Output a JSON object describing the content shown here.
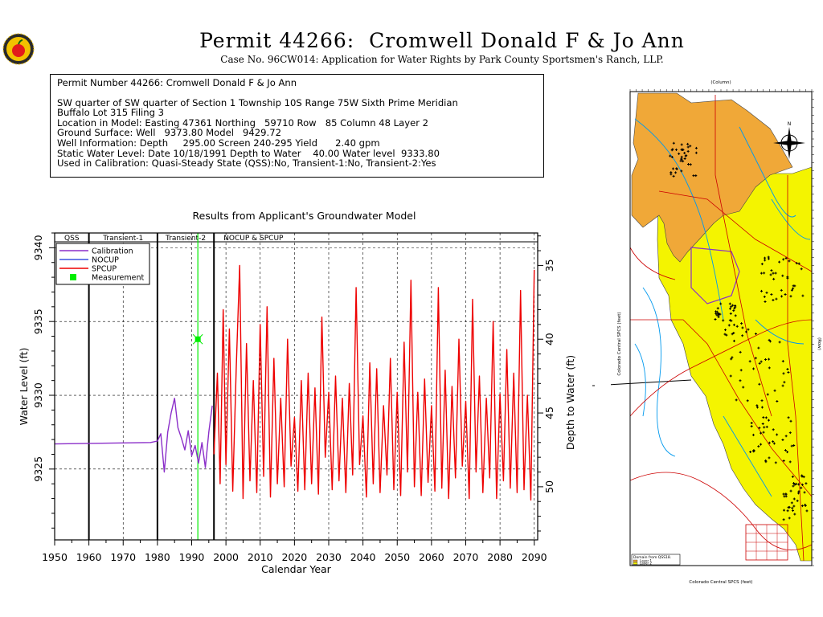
{
  "header": {
    "title": "Permit 44266:  Cromwell Donald F & Jo Ann",
    "subtitle": "Case No. 96CW014: Application for Water Rights by Park County Sportsmen's Ranch, LLP."
  },
  "info": {
    "line1": "Permit Number 44266: Cromwell Donald F & Jo Ann",
    "line2": "SW quarter of SW quarter of Section 1 Township 10S Range 75W Sixth Prime Meridian",
    "line3": "Buffalo Lot 315 Filing 3",
    "line4": "Location in Model: Easting 47361 Northing   59710 Row   85 Column 48 Layer 2",
    "line5": "Ground Surface: Well   9373.80 Model   9429.72",
    "line6": "Well Information: Depth     295.00 Screen 240-295 Yield      2.40 gpm",
    "line7": "Static Water Level: Date 10/18/1991 Depth to Water    40.00 Water level  9333.80",
    "line8": "Used in Calibration: Quasi-Steady State (QSS):No, Transient-1:No, Transient-2:Yes"
  },
  "colors": {
    "calibration": "#8b2fc9",
    "nocup": "#3b50e0",
    "spcup": "#ee0000",
    "measurement": "#00ee00",
    "map_orange": "#f0a838",
    "map_yellow": "#f4f400",
    "map_stream": "#0099ee",
    "map_road": "#cc0000"
  },
  "chart_data": {
    "type": "line",
    "title": "Results from Applicant's Groundwater Model",
    "xlabel": "Calendar Year",
    "ylabel": "Water Level (ft)",
    "ylabel_right": "Depth to Water (ft)",
    "xlim": [
      1950,
      2091
    ],
    "ylim": [
      9320.2,
      9341
    ],
    "x_ticks": [
      1950,
      1960,
      1970,
      1980,
      1990,
      2000,
      2010,
      2020,
      2030,
      2040,
      2050,
      2060,
      2070,
      2080,
      2090
    ],
    "y_ticks": [
      9325,
      9330,
      9335,
      9340
    ],
    "right_ticks": [
      35,
      40,
      45,
      50
    ],
    "periods": [
      {
        "label": "QSS",
        "start": 1950,
        "end": 1960
      },
      {
        "label": "Transient-1",
        "start": 1960,
        "end": 1980
      },
      {
        "label": "Transient-2",
        "start": 1980,
        "end": 1996.5
      },
      {
        "label": "NOCUP  &  SPCUP",
        "start": 1996.5,
        "end": 2091
      }
    ],
    "period_lines": [
      1960,
      1980,
      1996.5
    ],
    "measurement_date_line": 1991.8,
    "legend": [
      "Calibration",
      "NOCUP",
      "SPCUP",
      "Measurement"
    ],
    "legend_position": "top-left",
    "grid": true,
    "series": [
      {
        "name": "Calibration",
        "x": [
          1950,
          1978,
          1980,
          1981,
          1982,
          1983,
          1984,
          1985,
          1986,
          1987,
          1988,
          1989,
          1990,
          1991,
          1992,
          1993,
          1994,
          1995,
          1996
        ],
        "y": [
          9326.7,
          9326.8,
          9326.9,
          9327.4,
          9324.8,
          9327.5,
          9328.8,
          9329.8,
          9327.8,
          9327.1,
          9326.3,
          9327.6,
          9325.9,
          9326.6,
          9325.4,
          9326.8,
          9325.1,
          9327.5,
          9329.3
        ]
      },
      {
        "name": "SPCUP",
        "x": [
          1996.5,
          1997.5,
          1998.3,
          1999.2,
          2000,
          2001,
          2002,
          2003,
          2004,
          2005,
          2006,
          2007,
          2008,
          2009,
          2010,
          2011,
          2012,
          2013,
          2014,
          2015,
          2016,
          2017,
          2018,
          2019,
          2020,
          2021,
          2022,
          2023,
          2024,
          2025,
          2026,
          2027,
          2028,
          2029,
          2030,
          2031,
          2032,
          2033,
          2034,
          2035,
          2036,
          2037,
          2038,
          2039,
          2040,
          2041,
          2042,
          2043,
          2044,
          2045,
          2046,
          2047,
          2048,
          2049,
          2050,
          2051,
          2052,
          2053,
          2054,
          2055,
          2056,
          2057,
          2058,
          2059,
          2060,
          2061,
          2062,
          2063,
          2064,
          2065,
          2066,
          2067,
          2068,
          2069,
          2070,
          2071,
          2072,
          2073,
          2074,
          2075,
          2076,
          2077,
          2078,
          2079,
          2080,
          2081,
          2082,
          2083,
          2084,
          2085,
          2086,
          2087,
          2088,
          2089,
          2090
        ],
        "y": [
          9326.0,
          9331.5,
          9324.0,
          9335.8,
          9325.3,
          9334.5,
          9323.5,
          9331.8,
          9338.8,
          9323.0,
          9333.5,
          9324.2,
          9331.0,
          9323.4,
          9334.8,
          9324.5,
          9336.0,
          9323.1,
          9332.5,
          9324.0,
          9329.8,
          9323.8,
          9333.8,
          9325.2,
          9328.5,
          9323.5,
          9331.0,
          9323.6,
          9331.5,
          9324.0,
          9330.5,
          9323.3,
          9335.3,
          9325.8,
          9330.2,
          9323.6,
          9331.3,
          9324.2,
          9329.8,
          9323.4,
          9330.8,
          9324.6,
          9337.3,
          9325.3,
          9328.6,
          9323.1,
          9332.2,
          9324.0,
          9331.8,
          9323.4,
          9329.3,
          9324.6,
          9332.5,
          9323.6,
          9330.2,
          9323.2,
          9333.6,
          9324.8,
          9337.8,
          9323.8,
          9330.2,
          9323.2,
          9331.1,
          9324.1,
          9329.3,
          9323.5,
          9337.3,
          9323.7,
          9331.7,
          9323.0,
          9330.6,
          9324.4,
          9333.8,
          9325.2,
          9329.6,
          9323.0,
          9336.5,
          9324.8,
          9331.3,
          9323.4,
          9329.8,
          9324.4,
          9335.0,
          9323.0,
          9330.1,
          9324.2,
          9333.1,
          9323.7,
          9331.5,
          9323.4,
          9337.1,
          9323.6,
          9330.0,
          9322.9,
          9338.5
        ]
      }
    ],
    "measurements": [
      {
        "name": "Measurement",
        "x": 1991.8,
        "y": 9333.8
      }
    ]
  },
  "map": {
    "top_label": "(Column)",
    "left_label": "Colorado Central SPCS (feet)",
    "right_label": "(Row)",
    "bottom_label": "Colorado Central SPCS (feet)",
    "legend_title": "Domain from QSS18.",
    "legend_layer1": "Layer 1",
    "legend_layer2": "Layer 2",
    "north_label": "N"
  }
}
